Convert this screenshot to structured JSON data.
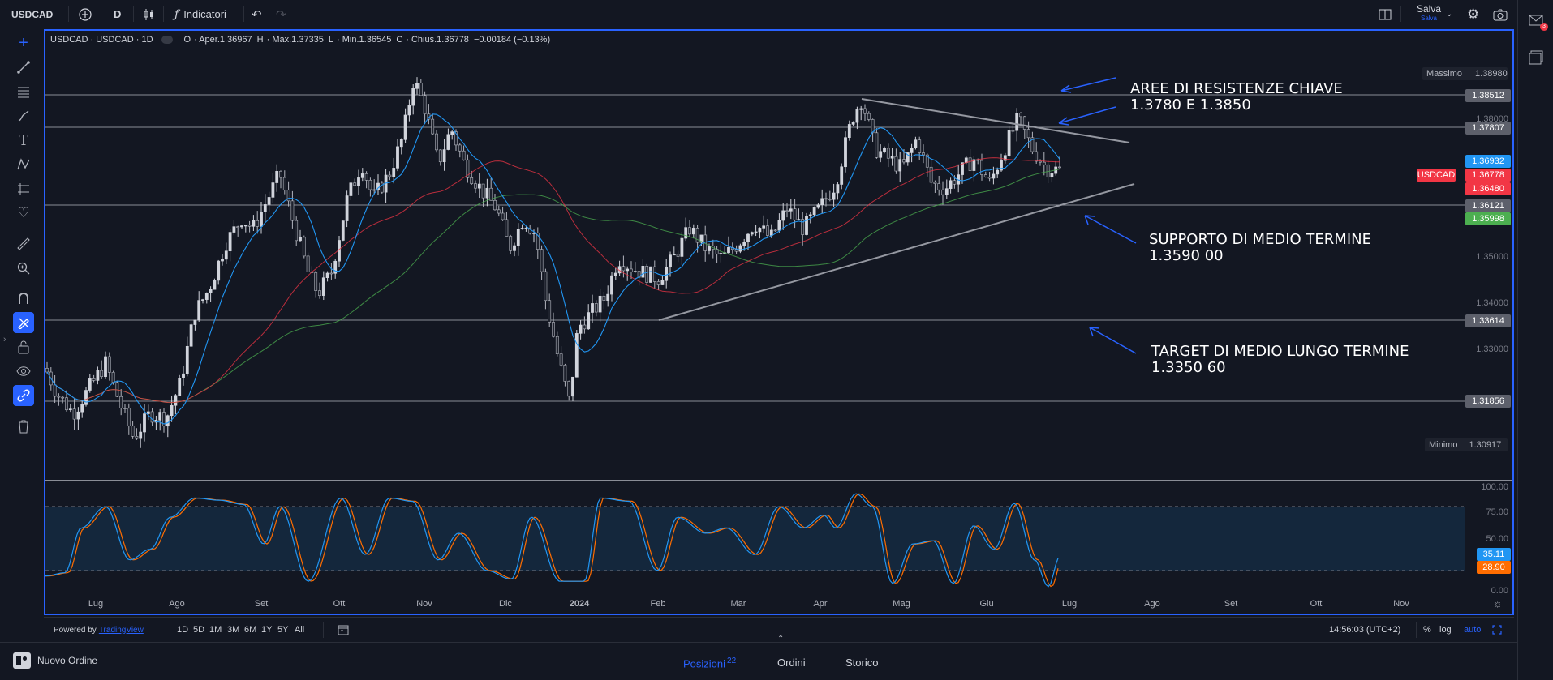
{
  "topbar": {
    "symbol": "USDCAD",
    "interval": "D",
    "indicators_label": "Indicatori",
    "save_label": "Salva",
    "save_sub": "Salva"
  },
  "legend": {
    "title": "USDCAD · USDCAD · 1D",
    "o_label": "O",
    "open": "· Aper.1.36967",
    "h_label": "H",
    "high": "· Max.1.37335",
    "l_label": "L",
    "low": "· Min.1.36545",
    "c_label": "C",
    "close": "· Chius.1.36778",
    "change": "−0.00184 (−0.13%)"
  },
  "price_axis": {
    "max_label": "Massimo",
    "max_value": "1.38980",
    "min_label": "Minimo",
    "min_value": "1.30917",
    "ticks": [
      "1.38000",
      "1.35000",
      "1.34000",
      "1.33000"
    ],
    "tags": {
      "r1": "1.38512",
      "r2": "1.37807",
      "ma_blue": "1.36932",
      "symbol": "USDCAD",
      "last": "1.36778",
      "ma_red": "1.36480",
      "support": "1.36121",
      "ma_green": "1.35998",
      "target": "1.33614",
      "low_line": "1.31856"
    }
  },
  "annotations": {
    "resist_1": "AREE DI RESISTENZE CHIAVE",
    "resist_2": "1.3780  E  1.3850",
    "support_1": "SUPPORTO DI MEDIO TERMINE",
    "support_2": "1.3590 00",
    "target_1": "TARGET DI MEDIO LUNGO TERMINE",
    "target_2": "1.3350 60"
  },
  "stoch": {
    "ticks": [
      "100.00",
      "75.00",
      "50.00",
      "0.00"
    ],
    "k_value": "35.11",
    "d_value": "28.90"
  },
  "time_axis": [
    "Lug",
    "Ago",
    "Set",
    "Ott",
    "Nov",
    "Dic",
    "2024",
    "Feb",
    "Mar",
    "Apr",
    "Mag",
    "Giu",
    "Lug",
    "Ago",
    "Set",
    "Ott",
    "Nov"
  ],
  "rangebar": {
    "powered": "Powered by",
    "brand": "TradingView",
    "ranges": [
      "1D",
      "5D",
      "1M",
      "3M",
      "6M",
      "1Y",
      "5Y",
      "All"
    ],
    "clock": "14:56:03 (UTC+2)",
    "pct": "%",
    "log": "log",
    "auto": "auto"
  },
  "bottompanel": {
    "new_order": "Nuovo Ordine",
    "tabs": [
      "Posizioni",
      "Ordini",
      "Storico"
    ],
    "positions_count": "22",
    "notif_count": "3"
  },
  "colors": {
    "bg": "#131722",
    "accent": "#2962ff",
    "ma_blue": "#2196f3",
    "ma_red": "#f23645",
    "ma_green": "#4caf50",
    "stoch_k": "#2196f3",
    "stoch_d": "#ff6d00"
  },
  "chart_data": {
    "type": "candlestick",
    "symbol": "USDCAD",
    "timeframe": "1D",
    "x": [
      "Lug",
      "Ago",
      "Set",
      "Ott",
      "Nov",
      "Dic",
      "2024",
      "Feb",
      "Mar",
      "Apr",
      "Mag",
      "Giu",
      "Lug"
    ],
    "close_approx": [
      1.321,
      1.328,
      1.352,
      1.365,
      1.387,
      1.358,
      1.32,
      1.343,
      1.35,
      1.362,
      1.368,
      1.37,
      1.36778
    ],
    "horizontal_levels": [
      1.38512,
      1.37807,
      1.36121,
      1.33614,
      1.31856
    ],
    "moving_averages": [
      {
        "name": "MA blue",
        "last": 1.36932
      },
      {
        "name": "MA red",
        "last": 1.3648
      },
      {
        "name": "MA green",
        "last": 1.35998
      }
    ],
    "ylim": [
      1.30917,
      1.3898
    ],
    "stochastic": {
      "k": 35.11,
      "d": 28.9,
      "bands": [
        20,
        80
      ]
    }
  }
}
